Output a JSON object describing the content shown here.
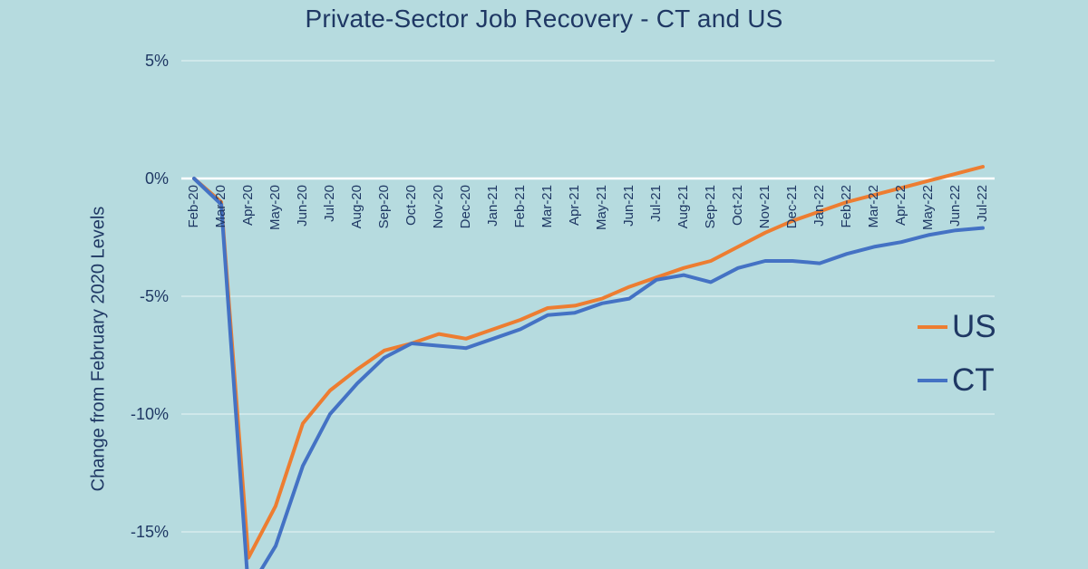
{
  "page": {
    "background_color": "#B6DBDF",
    "text_color": "#1F3864"
  },
  "chart_data": {
    "type": "line",
    "title": "Private-Sector Job Recovery - CT and US",
    "xlabel": "",
    "ylabel": "Change from February 2020 Levels",
    "categories": [
      "Feb-20",
      "Mar-20",
      "Apr-20",
      "May-20",
      "Jun-20",
      "Jul-20",
      "Aug-20",
      "Sep-20",
      "Oct-20",
      "Nov-20",
      "Dec-20",
      "Jan-21",
      "Feb-21",
      "Mar-21",
      "Apr-21",
      "May-21",
      "Jun-21",
      "Jul-21",
      "Aug-21",
      "Sep-21",
      "Oct-21",
      "Nov-21",
      "Dec-21",
      "Jan-22",
      "Feb-22",
      "Mar-22",
      "Apr-22",
      "May-22",
      "Jun-22",
      "Jul-22"
    ],
    "series": [
      {
        "name": "US",
        "color": "#ED7D31",
        "values": [
          0.0,
          -1.0,
          -16.1,
          -13.9,
          -10.4,
          -9.0,
          -8.1,
          -7.3,
          -7.0,
          -6.6,
          -6.8,
          -6.4,
          -6.0,
          -5.5,
          -5.4,
          -5.1,
          -4.6,
          -4.2,
          -3.8,
          -3.5,
          -2.9,
          -2.3,
          -1.8,
          -1.4,
          -1.0,
          -0.7,
          -0.4,
          -0.1,
          0.2,
          0.5
        ]
      },
      {
        "name": "CT",
        "color": "#4472C4",
        "values": [
          0.0,
          -1.1,
          -17.5,
          -15.6,
          -12.2,
          -10.0,
          -8.7,
          -7.6,
          -7.0,
          -7.1,
          -7.2,
          -6.8,
          -6.4,
          -5.8,
          -5.7,
          -5.3,
          -5.1,
          -4.3,
          -4.1,
          -4.4,
          -3.8,
          -3.5,
          -3.5,
          -3.6,
          -3.2,
          -2.9,
          -2.7,
          -2.4,
          -2.2,
          -2.1
        ]
      }
    ],
    "y_ticks": [
      {
        "label": "5%",
        "value": 5
      },
      {
        "label": "0%",
        "value": 0
      },
      {
        "label": "-5%",
        "value": -5
      },
      {
        "label": "-10%",
        "value": -10
      },
      {
        "label": "-15%",
        "value": -15
      }
    ],
    "ylim_visible": [
      -16.6,
      5.8
    ],
    "grid": "horizontal white gridlines, bold white line at 0%",
    "gridline_color": "rgba(255,255,255,0.55)",
    "zero_line_color": "#FFFFFF",
    "legend_position": "right",
    "note_clipping": "CT Apr-20 value extends below the visible bottom edge of the image"
  }
}
